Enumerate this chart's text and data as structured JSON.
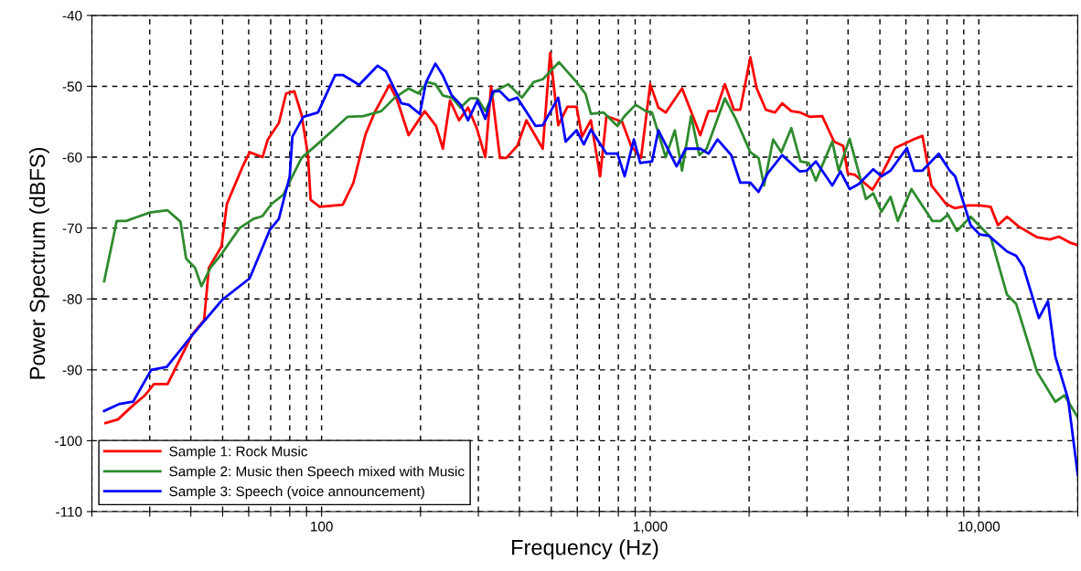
{
  "chart_data": {
    "type": "line",
    "xlabel": "Frequency (Hz)",
    "ylabel": "Power Spectrum (dBFS)",
    "log": "x",
    "xlim": [
      20,
      20000
    ],
    "ylim": [
      -110,
      -40
    ],
    "xticks": [
      {
        "value": 20,
        "label": null
      },
      {
        "value": 30,
        "label": null
      },
      {
        "value": 40,
        "label": null
      },
      {
        "value": 50,
        "label": null
      },
      {
        "value": 60,
        "label": null
      },
      {
        "value": 70,
        "label": null
      },
      {
        "value": 80,
        "label": null
      },
      {
        "value": 90,
        "label": null
      },
      {
        "value": 100,
        "label": "100"
      },
      {
        "value": 200,
        "label": null
      },
      {
        "value": 300,
        "label": null
      },
      {
        "value": 400,
        "label": null
      },
      {
        "value": 500,
        "label": null
      },
      {
        "value": 600,
        "label": null
      },
      {
        "value": 700,
        "label": null
      },
      {
        "value": 800,
        "label": null
      },
      {
        "value": 900,
        "label": null
      },
      {
        "value": 1000,
        "label": "1,000"
      },
      {
        "value": 2000,
        "label": null
      },
      {
        "value": 3000,
        "label": null
      },
      {
        "value": 4000,
        "label": null
      },
      {
        "value": 5000,
        "label": null
      },
      {
        "value": 6000,
        "label": null
      },
      {
        "value": 7000,
        "label": null
      },
      {
        "value": 8000,
        "label": null
      },
      {
        "value": 9000,
        "label": null
      },
      {
        "value": 10000,
        "label": "10,000"
      },
      {
        "value": 20000,
        "label": null
      }
    ],
    "yticks": [
      -110,
      -100,
      -90,
      -80,
      -70,
      -60,
      -50,
      -40
    ],
    "grid": true,
    "legend": "bottom left",
    "line_style": "solid",
    "marker": "none",
    "series": [
      {
        "name": "Sample 1: Rock Music",
        "color": "#ff0000",
        "x": [
          22,
          24,
          26.7,
          29,
          30.9,
          34,
          40.4,
          43.9,
          45.4,
          49.6,
          51.5,
          57.4,
          60.4,
          66.1,
          68.6,
          74.1,
          78,
          82.6,
          86.9,
          90.9,
          92.6,
          98.7,
          116,
          125,
          136,
          145,
          161,
          170,
          184,
          206,
          223,
          234,
          246,
          262,
          279,
          296,
          315,
          328,
          349,
          365,
          394,
          420,
          471,
          496,
          525,
          560,
          597,
          620,
          660,
          704,
          736,
          821,
          875,
          938,
          1000,
          1059,
          1115,
          1250,
          1420,
          1504,
          1583,
          1687,
          1798,
          1880,
          2017,
          2109,
          2248,
          2396,
          2522,
          2688,
          2865,
          3054,
          3338,
          3627,
          3867,
          3992,
          4201,
          4743,
          5054,
          5561,
          6320,
          6735,
          7178,
          7950,
          8472,
          9265,
          10065,
          10865,
          11435,
          12185,
          13245,
          15044,
          16451,
          17531,
          19048,
          20000
        ],
        "values": [
          -97.5,
          -97,
          -95,
          -93.6,
          -92,
          -92,
          -85,
          -83,
          -75.6,
          -72.6,
          -66.6,
          -61.4,
          -59.3,
          -60,
          -57.5,
          -55.2,
          -51,
          -50.7,
          -54,
          -59.7,
          -66,
          -67,
          -66.7,
          -63.6,
          -56.8,
          -53.7,
          -49.8,
          -52,
          -56.9,
          -53.5,
          -55.6,
          -58.8,
          -52,
          -54.8,
          -53,
          -55.8,
          -60,
          -50,
          -60.1,
          -60.1,
          -58.4,
          -54.8,
          -58.8,
          -45.3,
          -55.5,
          -52.9,
          -52.9,
          -57.1,
          -54.8,
          -62.7,
          -54.2,
          -55,
          -58.4,
          -60.1,
          -49.7,
          -53,
          -53.7,
          -50.3,
          -56.9,
          -53.5,
          -53.5,
          -49.7,
          -53.3,
          -53.3,
          -45.9,
          -50.3,
          -53.3,
          -53.7,
          -52.4,
          -53.5,
          -53.7,
          -54.3,
          -54.2,
          -57.8,
          -58.4,
          -62.3,
          -62.5,
          -64.6,
          -62.5,
          -58.7,
          -57.5,
          -57,
          -64,
          -66.6,
          -67.2,
          -66.8,
          -66.8,
          -67,
          -69.6,
          -68.4,
          -69.8,
          -71.3,
          -71.6,
          -71.2,
          -72.1,
          -72.4
        ]
      },
      {
        "name": "Sample 2: Music then Speech mixed with Music",
        "color": "#2e8b2e",
        "x": [
          21.8,
          23.8,
          25.4,
          27.6,
          30,
          34,
          37.2,
          38.7,
          41.2,
          43.1,
          45.9,
          49.9,
          56.3,
          62,
          66.1,
          70.4,
          76.5,
          81.5,
          86.9,
          96.9,
          110,
          120,
          134,
          152,
          167,
          184,
          197,
          210,
          222,
          234,
          249,
          265,
          283,
          298,
          315,
          336,
          370,
          407,
          442,
          471,
          528,
          597,
          636,
          660,
          722,
          795,
          836,
          903,
          969,
          1013,
          1115,
          1188,
          1250,
          1332,
          1411,
          1485,
          1687,
          1821,
          2017,
          2136,
          2220,
          2366,
          2506,
          2688,
          2865,
          3034,
          3193,
          3581,
          3745,
          4043,
          4534,
          4773,
          5054,
          5386,
          5668,
          6237,
          7223,
          7650,
          8052,
          8580,
          9443,
          10865,
          12185,
          12990,
          15044,
          17090,
          18220,
          20000
        ],
        "values": [
          -77.5,
          -69,
          -69,
          -68.4,
          -67.8,
          -67.5,
          -69.1,
          -74.3,
          -75.6,
          -78.2,
          -75.6,
          -73.5,
          -70,
          -68.7,
          -68.3,
          -66.6,
          -65.3,
          -62.7,
          -60.1,
          -58.2,
          -55.9,
          -54.3,
          -54.2,
          -53.5,
          -51.6,
          -50.3,
          -51,
          -49.4,
          -49.7,
          -51.3,
          -51.6,
          -53,
          -51.7,
          -51.7,
          -53.5,
          -50.7,
          -49.7,
          -51.6,
          -49.4,
          -49,
          -46.6,
          -49.4,
          -51.1,
          -53.9,
          -53.7,
          -55.6,
          -54.2,
          -52.6,
          -53.5,
          -53.7,
          -60,
          -56.2,
          -61.9,
          -54.2,
          -59.7,
          -58.8,
          -51.7,
          -54.6,
          -59.3,
          -60.1,
          -64,
          -57.5,
          -59.3,
          -55.9,
          -60.6,
          -60.8,
          -63.3,
          -57.8,
          -61.9,
          -57.4,
          -65.9,
          -65.1,
          -67.7,
          -65.6,
          -69,
          -64.5,
          -69,
          -69,
          -68.1,
          -70.4,
          -68.4,
          -71.3,
          -79.4,
          -80.7,
          -90.3,
          -94.5,
          -93.6,
          -96.7
        ]
      },
      {
        "name": "Sample 3: Speech (voice announcement)",
        "color": "#0000ff",
        "x": [
          21.8,
          24.3,
          26.7,
          30.3,
          33.8,
          40.4,
          49.9,
          60.4,
          69.5,
          74.1,
          80,
          81.5,
          88,
          97.5,
          110,
          116,
          124,
          130,
          148,
          157,
          175,
          184,
          199,
          208,
          222,
          234,
          249,
          265,
          279,
          298,
          315,
          332,
          349,
          372,
          394,
          448,
          471,
          525,
          553,
          597,
          628,
          660,
          736,
          795,
          836,
          892,
          932,
          1013,
          1059,
          1203,
          1282,
          1420,
          1504,
          1603,
          1764,
          1880,
          2017,
          2136,
          2277,
          2522,
          2847,
          2996,
          3193,
          3581,
          3793,
          4043,
          4310,
          4773,
          5054,
          5386,
          6041,
          6358,
          6735,
          7552,
          8155,
          8472,
          9443,
          10065,
          10727,
          12185,
          12990,
          13670,
          15230,
          16230,
          17090,
          18690,
          20000
        ],
        "values": [
          -95.8,
          -94.8,
          -94.5,
          -90,
          -89.6,
          -85.1,
          -80.1,
          -77.1,
          -70.3,
          -68.7,
          -62.7,
          -57.1,
          -54.3,
          -53.7,
          -48.4,
          -48.4,
          -49.2,
          -49.8,
          -47.1,
          -47.9,
          -52.4,
          -52.6,
          -53.9,
          -49.4,
          -46.8,
          -48.5,
          -51.3,
          -52.6,
          -54.8,
          -52,
          -54.6,
          -50.7,
          -50.7,
          -52,
          -51.6,
          -55.6,
          -55.5,
          -51.6,
          -57.8,
          -56.2,
          -58.2,
          -56.1,
          -59.5,
          -59.5,
          -62.7,
          -57.5,
          -60.8,
          -60.6,
          -56.2,
          -61.3,
          -58.8,
          -58.8,
          -59.5,
          -57.5,
          -59.7,
          -63.6,
          -63.6,
          -64.9,
          -62.3,
          -59.7,
          -62,
          -61.9,
          -60.6,
          -64,
          -62,
          -64.5,
          -63.8,
          -61.7,
          -62.7,
          -61.9,
          -58.7,
          -61.9,
          -61.9,
          -59.5,
          -61.9,
          -62.7,
          -69.6,
          -70.9,
          -71.1,
          -73.3,
          -73.9,
          -75.5,
          -82.7,
          -80.3,
          -88.1,
          -94.1,
          -104.8
        ]
      }
    ]
  }
}
